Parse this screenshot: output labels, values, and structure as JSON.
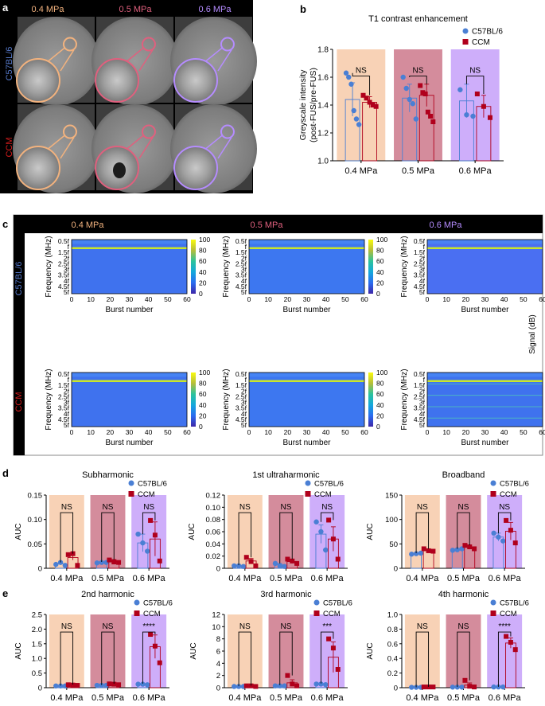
{
  "colors": {
    "c57": "#4a7fd4",
    "ccm": "#b0001c",
    "bg_04": "#f8d2b6",
    "bg_05": "#d48c9c",
    "bg_06": "#ceaefa",
    "lab_04": "#f2b27e",
    "lab_05": "#e0607e",
    "lab_06": "#b58cff",
    "row_c57": "#5578c8",
    "row_ccm": "#d41c1c"
  },
  "panel_a": {
    "letter": "a",
    "pressures": [
      "0.4 MPa",
      "0.5 MPa",
      "0.6 MPa"
    ],
    "rows": [
      "C57BL/6",
      "CCM"
    ]
  },
  "panel_c": {
    "letter": "c",
    "pressures": [
      "0.4 MPa",
      "0.5 MPa",
      "0.6 MPa"
    ],
    "rows": [
      "C57BL/6",
      "CCM"
    ],
    "ylabel": "Frequency (MHz)",
    "xlabel": "Burst number",
    "yticks": [
      "0.5f",
      "f",
      "1.5f",
      "2f",
      "2.5f",
      "3f",
      "3.5f",
      "4f",
      "4.5f",
      "5f"
    ],
    "xticks": [
      "0",
      "10",
      "20",
      "30",
      "40",
      "50",
      "60"
    ],
    "cbar_ticks": [
      "100",
      "80",
      "60",
      "40",
      "20",
      "0"
    ],
    "cbar_label": "Signal (dB)"
  },
  "chart_data": [
    {
      "id": "b",
      "letter": "b",
      "type": "bar",
      "title": "T1 contrast enhancement",
      "xlabel": "",
      "ylabel": [
        "Greyscale intensity",
        "(post-FUS/pre-FUS)"
      ],
      "categories": [
        "0.4 MPa",
        "0.5 MPa",
        "0.6 MPa"
      ],
      "ylim": [
        1.0,
        1.8
      ],
      "yticks": [
        "1.0",
        "1.2",
        "1.4",
        "1.6",
        "1.8"
      ],
      "legend": [
        "C57BL/6",
        "CCM"
      ],
      "legend_position": "top-right",
      "series": [
        {
          "name": "C57BL/6",
          "values": [
            1.44,
            1.45,
            1.43
          ],
          "err": [
            0.12,
            0.1,
            0.12
          ],
          "points": [
            [
              1.63,
              1.6,
              1.55,
              1.36,
              1.3,
              1.26
            ],
            [
              1.6,
              1.52,
              1.44,
              1.41,
              1.3
            ],
            [
              1.51,
              1.33,
              1.32
            ]
          ]
        },
        {
          "name": "CCM",
          "values": [
            1.42,
            1.47,
            1.39
          ],
          "err": [
            0.04,
            0.08,
            0.08
          ],
          "points": [
            [
              1.47,
              1.45,
              1.42,
              1.4,
              1.39
            ],
            [
              1.54,
              1.49,
              1.48,
              1.35,
              1.32,
              1.28
            ],
            [
              1.48,
              1.39,
              1.31
            ]
          ]
        }
      ],
      "annotations": [
        "NS",
        "NS",
        "NS"
      ]
    },
    {
      "id": "d1",
      "letter": "d",
      "type": "bar",
      "title": "Subharmonic",
      "xlabel": "",
      "ylabel": "AUC",
      "categories": [
        "0.4 MPa",
        "0.5 MPa",
        "0.6 MPa"
      ],
      "ylim": [
        0,
        0.15
      ],
      "yticks": [
        "0",
        "0.05",
        "0.10",
        "0.15"
      ],
      "legend": [
        "C57BL/6",
        "CCM"
      ],
      "legend_position": "top-right",
      "series": [
        {
          "name": "C57BL/6",
          "values": [
            0.009,
            0.012,
            0.052
          ],
          "err": [
            0.002,
            0.001,
            0.018
          ],
          "points": [
            [
              0.008,
              0.012,
              0.006
            ],
            [
              0.011,
              0.012,
              0.012
            ],
            [
              0.07,
              0.052,
              0.035
            ]
          ]
        },
        {
          "name": "CCM",
          "values": [
            0.022,
            0.014,
            0.06
          ],
          "err": [
            0.005,
            0.004,
            0.035
          ],
          "points": [
            [
              0.028,
              0.03,
              0.006
            ],
            [
              0.017,
              0.013,
              0.012
            ],
            [
              0.098,
              0.068,
              0.015
            ]
          ]
        }
      ],
      "annotations": [
        "NS",
        "NS",
        "NS"
      ]
    },
    {
      "id": "d2",
      "letter": "",
      "type": "bar",
      "title": "1st ultraharmonic",
      "xlabel": "",
      "ylabel": "AUC",
      "categories": [
        "0.4 MPa",
        "0.5 MPa",
        "0.6 MPa"
      ],
      "ylim": [
        0,
        0.12
      ],
      "yticks": [
        "0",
        "0.02",
        "0.04",
        "0.06",
        "0.08",
        "0.10",
        "0.12"
      ],
      "legend": [
        "C57BL/6",
        "CCM"
      ],
      "legend_position": "top-right",
      "series": [
        {
          "name": "C57BL/6",
          "values": [
            0.004,
            0.006,
            0.056
          ],
          "err": [
            0.001,
            0.002,
            0.015
          ],
          "points": [
            [
              0.004,
              0.004,
              0.003
            ],
            [
              0.008,
              0.004,
              0.003
            ],
            [
              0.076,
              0.06,
              0.03
            ]
          ]
        },
        {
          "name": "CCM",
          "values": [
            0.012,
            0.011,
            0.048
          ],
          "err": [
            0.004,
            0.003,
            0.02
          ],
          "points": [
            [
              0.018,
              0.011,
              0.004
            ],
            [
              0.015,
              0.012,
              0.008
            ],
            [
              0.079,
              0.048,
              0.015
            ]
          ]
        }
      ],
      "annotations": [
        "NS",
        "NS",
        "NS"
      ]
    },
    {
      "id": "d3",
      "letter": "",
      "type": "bar",
      "title": "Broadband",
      "xlabel": "",
      "ylabel": "AUC",
      "categories": [
        "0.4 MPa",
        "0.5 MPa",
        "0.6 MPa"
      ],
      "ylim": [
        0,
        150
      ],
      "yticks": [
        "0",
        "50",
        "100",
        "150"
      ],
      "legend": [
        "C57BL/6",
        "CCM"
      ],
      "legend_position": "top-right",
      "series": [
        {
          "name": "C57BL/6",
          "values": [
            30,
            38,
            64
          ],
          "err": [
            1,
            2,
            8
          ],
          "points": [
            [
              29,
              30,
              31
            ],
            [
              37,
              38,
              40
            ],
            [
              72,
              64,
              56
            ]
          ]
        },
        {
          "name": "CCM",
          "values": [
            37,
            43,
            76
          ],
          "err": [
            3,
            4,
            18
          ],
          "points": [
            [
              40,
              36,
              35
            ],
            [
              47,
              44,
              40
            ],
            [
              98,
              78,
              52
            ]
          ]
        }
      ],
      "annotations": [
        "NS",
        "NS",
        "NS"
      ]
    },
    {
      "id": "e1",
      "letter": "e",
      "type": "bar",
      "title": "2nd harmonic",
      "xlabel": "",
      "ylabel": "AUC",
      "categories": [
        "0.4 MPa",
        "0.5 MPa",
        "0.6 MPa"
      ],
      "ylim": [
        0,
        2.5
      ],
      "yticks": [
        "0",
        "0.5",
        "1.0",
        "1.5",
        "2.0",
        "2.5"
      ],
      "legend": [
        "C57BL/6",
        "CCM"
      ],
      "legend_position": "top-right",
      "series": [
        {
          "name": "C57BL/6",
          "values": [
            0.06,
            0.08,
            0.12
          ],
          "err": [
            0.01,
            0.01,
            0.02
          ],
          "points": [
            [
              0.06,
              0.06,
              0.06
            ],
            [
              0.08,
              0.08,
              0.08
            ],
            [
              0.12,
              0.12,
              0.1
            ]
          ]
        },
        {
          "name": "CCM",
          "values": [
            0.09,
            0.12,
            1.4
          ],
          "err": [
            0.02,
            0.02,
            0.4
          ],
          "points": [
            [
              0.1,
              0.09,
              0.08
            ],
            [
              0.13,
              0.12,
              0.1
            ],
            [
              1.82,
              1.42,
              0.85
            ]
          ]
        }
      ],
      "annotations": [
        "NS",
        "NS",
        "****"
      ]
    },
    {
      "id": "e2",
      "letter": "",
      "type": "bar",
      "title": "3rd harmonic",
      "xlabel": "",
      "ylabel": "AUC",
      "categories": [
        "0.4 MPa",
        "0.5 MPa",
        "0.6 MPa"
      ],
      "ylim": [
        0,
        12
      ],
      "yticks": [
        "0",
        "2",
        "4",
        "6",
        "8",
        "10",
        "12"
      ],
      "legend": [
        "C57BL/6",
        "CCM"
      ],
      "legend_position": "top-right",
      "series": [
        {
          "name": "C57BL/6",
          "values": [
            0.2,
            0.3,
            0.6
          ],
          "err": [
            0.05,
            0.1,
            0.1
          ],
          "points": [
            [
              0.2,
              0.2,
              0.2
            ],
            [
              0.3,
              0.3,
              0.3
            ],
            [
              0.6,
              0.6,
              0.5
            ]
          ]
        },
        {
          "name": "CCM",
          "values": [
            0.3,
            0.8,
            5.0
          ],
          "err": [
            0.05,
            0.5,
            2.5
          ],
          "points": [
            [
              0.3,
              0.3,
              0.2
            ],
            [
              2.0,
              0.6,
              0.3
            ],
            [
              8.0,
              6.5,
              3.0
            ]
          ]
        }
      ],
      "annotations": [
        "NS",
        "NS",
        "***"
      ]
    },
    {
      "id": "e3",
      "letter": "",
      "type": "bar",
      "title": "4th harmonic",
      "xlabel": "",
      "ylabel": "AUC",
      "categories": [
        "0.4 MPa",
        "0.5 MPa",
        "0.6 MPa"
      ],
      "ylim": [
        0,
        1.0
      ],
      "yticks": [
        "0",
        "0.2",
        "0.4",
        "0.6",
        "0.8",
        "1.0"
      ],
      "legend": [
        "C57BL/6",
        "CCM"
      ],
      "legend_position": "top-right",
      "series": [
        {
          "name": "C57BL/6",
          "values": [
            0.005,
            0.008,
            0.01
          ],
          "err": [
            0.001,
            0.001,
            0.002
          ],
          "points": [
            [
              0.005,
              0.005,
              0.005
            ],
            [
              0.008,
              0.008,
              0.008
            ],
            [
              0.01,
              0.01,
              0.01
            ]
          ]
        },
        {
          "name": "CCM",
          "values": [
            0.01,
            0.035,
            0.61
          ],
          "err": [
            0.002,
            0.03,
            0.07
          ],
          "points": [
            [
              0.01,
              0.01,
              0.01
            ],
            [
              0.1,
              0.02,
              0.01
            ],
            [
              0.7,
              0.62,
              0.52
            ]
          ]
        }
      ],
      "annotations": [
        "NS",
        "NS",
        "****"
      ]
    }
  ]
}
